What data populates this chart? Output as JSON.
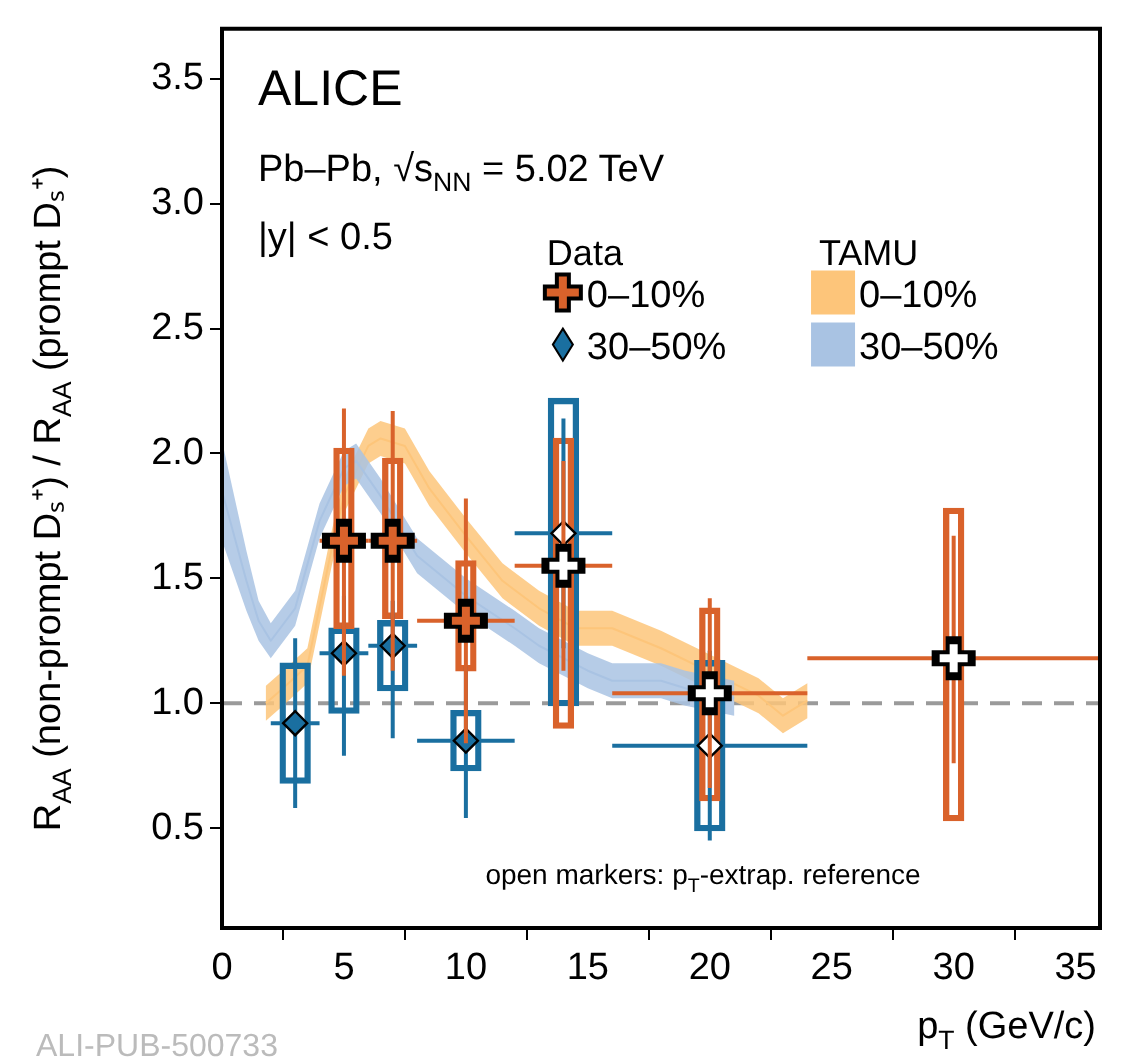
{
  "chart_data": {
    "type": "scatter",
    "xlabel": "p$_{T}$ (GeV/c)",
    "ylabel": "R$_{AA}$ (non-prompt Dₛ⁺) / R$_{AA}$ (prompt Dₛ⁺)",
    "xlim": [
      0,
      36
    ],
    "xticks": [
      0,
      5,
      10,
      15,
      20,
      25,
      30,
      35
    ],
    "ylim": [
      0.1,
      3.7
    ],
    "yticks": [
      {
        "value": 0.5,
        "label": "0.5"
      },
      {
        "value": 1,
        "label": "1.0"
      },
      {
        "value": 1.5,
        "label": "1.5"
      },
      {
        "value": 2,
        "label": "2.0"
      },
      {
        "value": 2.5,
        "label": "2.5"
      },
      {
        "value": 3,
        "label": "3.0"
      },
      {
        "value": 3.5,
        "label": "3.5"
      }
    ],
    "grid": false,
    "legend": "top right",
    "annotations": [
      "ALICE",
      "Pb–Pb, √s$_{NN}$ = 5.02 TeV",
      "|y| < 0.5",
      "Data",
      "TAMU",
      "open markers: p$_{T}$-extrap. reference",
      "ALI-PUB-500733"
    ],
    "ref_lines": [
      {
        "axis": "y",
        "value": 1,
        "color": "#9a9a9a",
        "line_style": "dashed"
      }
    ],
    "series": [
      {
        "name": "0–10%",
        "type": "line",
        "color": "#fdc57a",
        "marker": "none",
        "x": [
          1.8,
          2.5,
          3.5,
          4.5,
          5,
          6,
          6.5,
          7.5,
          8.5,
          10,
          11.5,
          13,
          14.5,
          16,
          18,
          22,
          23,
          24
        ],
        "values": [
          1.0,
          1.06,
          1.15,
          1.62,
          1.83,
          2.03,
          2.06,
          2.03,
          1.86,
          1.67,
          1.49,
          1.38,
          1.3,
          1.3,
          1.22,
          1.03,
          0.95,
          1.01
        ],
        "lower": [
          0.93,
          0.99,
          1.08,
          1.55,
          1.76,
          1.96,
          1.99,
          1.96,
          1.79,
          1.6,
          1.42,
          1.31,
          1.23,
          1.23,
          1.15,
          0.96,
          0.88,
          0.94
        ],
        "upper": [
          1.07,
          1.13,
          1.22,
          1.69,
          1.9,
          2.1,
          2.13,
          2.1,
          1.93,
          1.74,
          1.56,
          1.45,
          1.37,
          1.37,
          1.29,
          1.1,
          1.02,
          1.08
        ]
      },
      {
        "name": "30–50%",
        "type": "line",
        "color": "#a9c3e3",
        "marker": "none",
        "x": [
          0,
          1,
          1.5,
          2,
          3,
          4,
          5,
          5.5,
          6.5,
          8,
          10,
          12,
          13,
          15,
          16,
          18,
          19,
          21
        ],
        "values": [
          1.85,
          1.49,
          1.33,
          1.25,
          1.38,
          1.73,
          1.94,
          1.97,
          1.83,
          1.59,
          1.43,
          1.3,
          1.23,
          1.13,
          1.09,
          1.09,
          1.06,
          1.02
        ],
        "lower": [
          1.65,
          1.37,
          1.25,
          1.18,
          1.31,
          1.66,
          1.87,
          1.9,
          1.76,
          1.52,
          1.36,
          1.23,
          1.16,
          1.06,
          1.02,
          1.02,
          0.99,
          0.95
        ],
        "upper": [
          2.05,
          1.61,
          1.41,
          1.32,
          1.45,
          1.8,
          2.01,
          2.04,
          1.9,
          1.66,
          1.5,
          1.37,
          1.3,
          1.2,
          1.16,
          1.16,
          1.13,
          1.09
        ]
      },
      {
        "type": "bar",
        "color": "#1a6fa0",
        "x": [
          3,
          5,
          7,
          10,
          14,
          20
        ],
        "base": [
          0.68,
          0.96,
          1.05,
          0.73,
          0.99,
          0.49
        ],
        "values": [
          0.48,
          0.34,
          0.28,
          0.24,
          1.23,
          0.68
        ]
      },
      {
        "type": "bar",
        "color": "#d9622b",
        "x": [
          5,
          7,
          10,
          14,
          20,
          30
        ],
        "base": [
          1.3,
          1.34,
          1.13,
          0.9,
          0.61,
          0.53
        ],
        "values": [
          0.72,
          0.64,
          0.44,
          1.16,
          0.77,
          1.25
        ]
      },
      {
        "name": "0–10%",
        "color": "#d9622b",
        "marker": "cross",
        "x": [
          5,
          7,
          10,
          14,
          20,
          30
        ],
        "values": [
          1.65,
          1.65,
          1.33,
          1.55,
          1.04,
          1.18
        ],
        "colors": [
          "#d9622b",
          "#d9622b",
          "#d9622b",
          "#ffffff",
          "#ffffff",
          "#ffffff"
        ],
        "errors": [
          [
            1.11,
            2.18
          ],
          [
            1.13,
            2.17
          ],
          [
            0.84,
            1.82
          ],
          [
            1.13,
            1.97
          ],
          [
            0.66,
            1.42
          ],
          [
            0.76,
            1.67
          ]
        ],
        "xerrors": [
          [
            4,
            6
          ],
          [
            6,
            8
          ],
          [
            8,
            12
          ],
          [
            12,
            16
          ],
          [
            16,
            24
          ],
          [
            24,
            36
          ]
        ]
      },
      {
        "name": "30–50%",
        "color": "#1a6fa0",
        "marker": "diamond",
        "x": [
          3,
          5,
          7,
          10,
          14,
          20
        ],
        "values": [
          0.92,
          1.2,
          1.23,
          0.85,
          1.68,
          0.83
        ],
        "colors": [
          "#1a6fa0",
          "#1a6fa0",
          "#1a6fa0",
          "#1a6fa0",
          "#ffffff",
          "#ffffff"
        ],
        "errors": [
          [
            0.58,
            1.26
          ],
          [
            0.79,
            1.43
          ],
          [
            0.86,
            1.41
          ],
          [
            0.54,
            1.15
          ],
          [
            1.22,
            2.14
          ],
          [
            0.45,
            1.21
          ]
        ],
        "xerrors": [
          [
            2,
            4
          ],
          [
            4,
            6
          ],
          [
            6,
            8
          ],
          [
            8,
            12
          ],
          [
            12,
            16
          ],
          [
            16,
            24
          ]
        ]
      }
    ]
  }
}
